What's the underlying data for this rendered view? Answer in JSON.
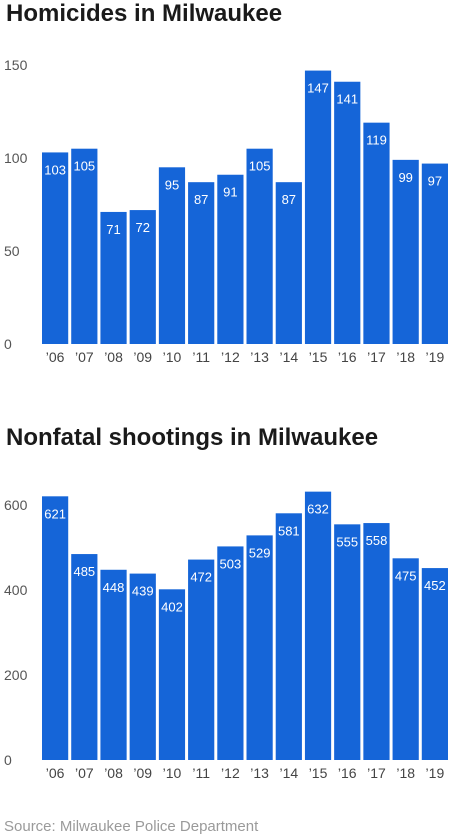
{
  "page": {
    "source": "Source: Milwaukee Police Department"
  },
  "chart_data": [
    {
      "type": "bar",
      "title": "Homicides in Milwaukee",
      "categories": [
        "’06",
        "’07",
        "’08",
        "’09",
        "’10",
        "’11",
        "’12",
        "’13",
        "’14",
        "’15",
        "’16",
        "’17",
        "’18",
        "’19"
      ],
      "values": [
        103,
        105,
        71,
        72,
        95,
        87,
        91,
        105,
        87,
        147,
        141,
        119,
        99,
        97
      ],
      "ylim": [
        0,
        150
      ],
      "yticks": [
        0,
        50,
        100,
        150
      ],
      "bar_color": "#1565d8",
      "xlabel": "",
      "ylabel": ""
    },
    {
      "type": "bar",
      "title": "Nonfatal shootings in Milwaukee",
      "categories": [
        "’06",
        "’07",
        "’08",
        "’09",
        "’10",
        "’11",
        "’12",
        "’13",
        "’14",
        "’15",
        "’16",
        "’17",
        "’18",
        "’19"
      ],
      "values": [
        621,
        485,
        448,
        439,
        402,
        472,
        503,
        529,
        581,
        632,
        555,
        558,
        475,
        452
      ],
      "ylim": [
        0,
        650
      ],
      "yticks": [
        0,
        200,
        400,
        600
      ],
      "bar_color": "#1565d8",
      "xlabel": "",
      "ylabel": ""
    }
  ]
}
